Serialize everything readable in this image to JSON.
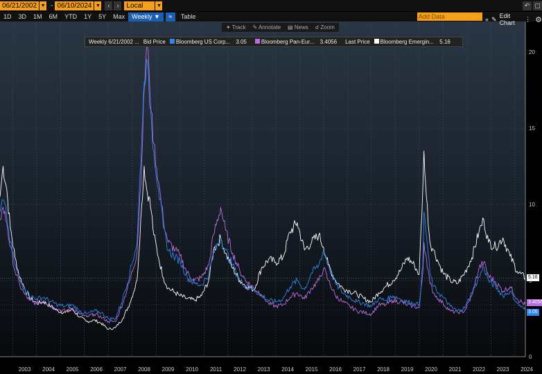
{
  "toolbar": {
    "start_date": "06/21/2002",
    "end_date": "06/10/2024",
    "currency": "Local CCY",
    "periods": [
      "1D",
      "3D",
      "1M",
      "6M",
      "YTD",
      "1Y",
      "5Y",
      "Max"
    ],
    "frequency": "Weekly",
    "table_label": "Table",
    "add_data_placeholder": "Add Data",
    "edit_chart_label": "Edit Chart"
  },
  "tools": [
    "Track",
    "Annotate",
    "News",
    "Zoom"
  ],
  "legend": {
    "header": "Weekly 6/21/2002 ...",
    "bid_label": "Bid Price",
    "last_label": "Last Price"
  },
  "colors": {
    "us_corp": "#2f86e8",
    "pan_euro": "#b86ee0",
    "em": "#ffffff",
    "accent": "#f6a01a",
    "active": "#1b5fb5"
  },
  "chart_data": {
    "type": "line",
    "xlim": [
      2002.47,
      2024.44
    ],
    "ylim": [
      0,
      22
    ],
    "x_ticks": [
      "2003",
      "2004",
      "2005",
      "2006",
      "2007",
      "2008",
      "2009",
      "2010",
      "2011",
      "2012",
      "2013",
      "2014",
      "2015",
      "2016",
      "2017",
      "2018",
      "2019",
      "2020",
      "2021",
      "2022",
      "2023",
      "2024"
    ],
    "y_ticks": [
      0,
      5,
      10,
      15,
      20
    ],
    "x_labels": [
      2003,
      2004,
      2005,
      2006,
      2007,
      2008,
      2009,
      2010,
      2011,
      2012,
      2013,
      2014,
      2015,
      2016,
      2017,
      2018,
      2019,
      2020,
      2021,
      2022,
      2023,
      2024
    ],
    "grid": true,
    "series": [
      {
        "name": "Bloomberg US Corp...",
        "last_value": "3.05",
        "color": "#2f86e8",
        "points": [
          [
            2002.47,
            9.5
          ],
          [
            2002.6,
            10.3
          ],
          [
            2002.75,
            9.2
          ],
          [
            2002.9,
            7.5
          ],
          [
            2003.1,
            6.0
          ],
          [
            2003.3,
            5.0
          ],
          [
            2003.5,
            4.5
          ],
          [
            2003.7,
            4.0
          ],
          [
            2004.0,
            3.8
          ],
          [
            2004.3,
            3.9
          ],
          [
            2004.6,
            3.6
          ],
          [
            2004.9,
            3.4
          ],
          [
            2005.2,
            3.3
          ],
          [
            2005.5,
            3.4
          ],
          [
            2005.8,
            3.0
          ],
          [
            2006.1,
            2.8
          ],
          [
            2006.4,
            3.0
          ],
          [
            2006.7,
            2.9
          ],
          [
            2007.0,
            2.5
          ],
          [
            2007.3,
            2.5
          ],
          [
            2007.6,
            3.8
          ],
          [
            2007.9,
            5.5
          ],
          [
            2008.2,
            7.5
          ],
          [
            2008.4,
            14.5
          ],
          [
            2008.5,
            18.0
          ],
          [
            2008.6,
            19.5
          ],
          [
            2008.7,
            17.5
          ],
          [
            2008.8,
            15.5
          ],
          [
            2008.9,
            13.5
          ],
          [
            2009.1,
            11.0
          ],
          [
            2009.3,
            8.5
          ],
          [
            2009.5,
            7.0
          ],
          [
            2009.8,
            6.5
          ],
          [
            2010.0,
            6.3
          ],
          [
            2010.3,
            5.2
          ],
          [
            2010.6,
            4.8
          ],
          [
            2010.9,
            4.7
          ],
          [
            2011.2,
            5.4
          ],
          [
            2011.4,
            6.8
          ],
          [
            2011.7,
            7.8
          ],
          [
            2011.9,
            7.0
          ],
          [
            2012.2,
            6.0
          ],
          [
            2012.5,
            5.0
          ],
          [
            2012.8,
            4.6
          ],
          [
            2013.1,
            4.4
          ],
          [
            2013.4,
            4.0
          ],
          [
            2013.7,
            3.7
          ],
          [
            2014.0,
            3.6
          ],
          [
            2014.3,
            3.8
          ],
          [
            2014.6,
            4.6
          ],
          [
            2014.9,
            5.0
          ],
          [
            2015.2,
            4.4
          ],
          [
            2015.5,
            5.5
          ],
          [
            2015.8,
            6.0
          ],
          [
            2016.0,
            7.0
          ],
          [
            2016.2,
            6.0
          ],
          [
            2016.5,
            4.8
          ],
          [
            2016.8,
            4.2
          ],
          [
            2017.1,
            3.9
          ],
          [
            2017.4,
            3.6
          ],
          [
            2017.7,
            3.5
          ],
          [
            2018.0,
            3.3
          ],
          [
            2018.3,
            3.8
          ],
          [
            2018.6,
            3.7
          ],
          [
            2018.9,
            4.0
          ],
          [
            2019.2,
            3.8
          ],
          [
            2019.5,
            3.6
          ],
          [
            2019.8,
            3.5
          ],
          [
            2020.0,
            3.4
          ],
          [
            2020.15,
            6.0
          ],
          [
            2020.2,
            9.5
          ],
          [
            2020.3,
            8.0
          ],
          [
            2020.45,
            5.5
          ],
          [
            2020.6,
            4.6
          ],
          [
            2020.8,
            4.2
          ],
          [
            2021.0,
            3.9
          ],
          [
            2021.3,
            3.3
          ],
          [
            2021.6,
            3.0
          ],
          [
            2021.9,
            3.2
          ],
          [
            2022.2,
            4.2
          ],
          [
            2022.5,
            5.2
          ],
          [
            2022.7,
            5.9
          ],
          [
            2022.9,
            5.0
          ],
          [
            2023.2,
            4.6
          ],
          [
            2023.5,
            4.0
          ],
          [
            2023.8,
            4.3
          ],
          [
            2024.1,
            3.5
          ],
          [
            2024.44,
            3.05
          ]
        ]
      },
      {
        "name": "Bloomberg Pan-Eur...",
        "last_value": "3.4056",
        "color": "#b86ee0",
        "points": [
          [
            2002.47,
            9.0
          ],
          [
            2002.6,
            9.8
          ],
          [
            2002.75,
            8.8
          ],
          [
            2002.9,
            7.2
          ],
          [
            2003.1,
            5.6
          ],
          [
            2003.3,
            4.7
          ],
          [
            2003.5,
            4.1
          ],
          [
            2003.7,
            3.7
          ],
          [
            2004.0,
            3.5
          ],
          [
            2004.3,
            3.7
          ],
          [
            2004.6,
            3.3
          ],
          [
            2004.9,
            3.1
          ],
          [
            2005.2,
            3.0
          ],
          [
            2005.5,
            3.2
          ],
          [
            2005.8,
            2.8
          ],
          [
            2006.1,
            2.6
          ],
          [
            2006.4,
            2.8
          ],
          [
            2006.7,
            2.6
          ],
          [
            2007.0,
            2.3
          ],
          [
            2007.3,
            2.3
          ],
          [
            2007.6,
            3.5
          ],
          [
            2007.9,
            5.0
          ],
          [
            2008.2,
            6.8
          ],
          [
            2008.4,
            13.0
          ],
          [
            2008.5,
            17.5
          ],
          [
            2008.6,
            20.5
          ],
          [
            2008.7,
            19.0
          ],
          [
            2008.8,
            16.0
          ],
          [
            2008.9,
            14.0
          ],
          [
            2009.1,
            11.5
          ],
          [
            2009.3,
            9.0
          ],
          [
            2009.5,
            7.5
          ],
          [
            2009.8,
            7.0
          ],
          [
            2010.0,
            6.6
          ],
          [
            2010.3,
            5.5
          ],
          [
            2010.6,
            5.0
          ],
          [
            2010.9,
            5.2
          ],
          [
            2011.2,
            6.0
          ],
          [
            2011.4,
            8.0
          ],
          [
            2011.7,
            9.8
          ],
          [
            2011.9,
            8.3
          ],
          [
            2012.2,
            6.8
          ],
          [
            2012.5,
            5.6
          ],
          [
            2012.8,
            4.9
          ],
          [
            2013.1,
            4.5
          ],
          [
            2013.4,
            4.1
          ],
          [
            2013.7,
            3.5
          ],
          [
            2014.0,
            3.3
          ],
          [
            2014.3,
            3.4
          ],
          [
            2014.6,
            3.9
          ],
          [
            2014.9,
            4.2
          ],
          [
            2015.2,
            3.8
          ],
          [
            2015.5,
            4.5
          ],
          [
            2015.8,
            5.0
          ],
          [
            2016.0,
            5.8
          ],
          [
            2016.2,
            5.0
          ],
          [
            2016.5,
            4.0
          ],
          [
            2016.8,
            3.6
          ],
          [
            2017.1,
            3.3
          ],
          [
            2017.4,
            3.0
          ],
          [
            2017.7,
            2.9
          ],
          [
            2018.0,
            2.8
          ],
          [
            2018.3,
            3.4
          ],
          [
            2018.6,
            3.4
          ],
          [
            2018.9,
            3.7
          ],
          [
            2019.2,
            3.6
          ],
          [
            2019.5,
            3.4
          ],
          [
            2019.8,
            3.3
          ],
          [
            2020.0,
            3.2
          ],
          [
            2020.15,
            5.5
          ],
          [
            2020.2,
            7.5
          ],
          [
            2020.3,
            6.5
          ],
          [
            2020.45,
            4.8
          ],
          [
            2020.6,
            4.2
          ],
          [
            2020.8,
            3.8
          ],
          [
            2021.0,
            3.5
          ],
          [
            2021.3,
            3.0
          ],
          [
            2021.6,
            2.9
          ],
          [
            2021.9,
            3.0
          ],
          [
            2022.2,
            4.0
          ],
          [
            2022.5,
            5.8
          ],
          [
            2022.7,
            6.2
          ],
          [
            2022.9,
            5.3
          ],
          [
            2023.2,
            4.9
          ],
          [
            2023.5,
            4.3
          ],
          [
            2023.8,
            4.6
          ],
          [
            2024.1,
            3.8
          ],
          [
            2024.44,
            3.4056
          ]
        ]
      },
      {
        "name": "Bloomberg Emergin...",
        "last_value": "5.16",
        "color": "#ffffff",
        "points": [
          [
            2002.47,
            10.5
          ],
          [
            2002.6,
            12.5
          ],
          [
            2002.75,
            11.0
          ],
          [
            2002.9,
            8.5
          ],
          [
            2003.1,
            6.5
          ],
          [
            2003.3,
            5.2
          ],
          [
            2003.5,
            4.5
          ],
          [
            2003.7,
            3.9
          ],
          [
            2004.0,
            3.5
          ],
          [
            2004.3,
            3.6
          ],
          [
            2004.6,
            3.3
          ],
          [
            2004.9,
            3.0
          ],
          [
            2005.2,
            2.9
          ],
          [
            2005.5,
            3.1
          ],
          [
            2005.8,
            2.6
          ],
          [
            2006.1,
            2.3
          ],
          [
            2006.4,
            2.4
          ],
          [
            2006.7,
            2.2
          ],
          [
            2007.0,
            1.8
          ],
          [
            2007.3,
            1.9
          ],
          [
            2007.6,
            2.5
          ],
          [
            2007.9,
            3.5
          ],
          [
            2008.2,
            5.0
          ],
          [
            2008.4,
            10.0
          ],
          [
            2008.5,
            12.5
          ],
          [
            2008.6,
            11.0
          ],
          [
            2008.7,
            10.5
          ],
          [
            2008.8,
            9.5
          ],
          [
            2008.9,
            8.0
          ],
          [
            2009.1,
            6.5
          ],
          [
            2009.3,
            5.2
          ],
          [
            2009.5,
            4.5
          ],
          [
            2009.8,
            4.2
          ],
          [
            2010.0,
            4.0
          ],
          [
            2010.3,
            3.8
          ],
          [
            2010.6,
            3.7
          ],
          [
            2010.9,
            4.0
          ],
          [
            2011.2,
            5.0
          ],
          [
            2011.4,
            7.0
          ],
          [
            2011.7,
            7.8
          ],
          [
            2011.9,
            6.8
          ],
          [
            2012.2,
            5.8
          ],
          [
            2012.5,
            5.0
          ],
          [
            2012.8,
            4.6
          ],
          [
            2013.1,
            4.4
          ],
          [
            2013.4,
            5.8
          ],
          [
            2013.7,
            6.4
          ],
          [
            2014.0,
            6.2
          ],
          [
            2014.3,
            6.5
          ],
          [
            2014.6,
            8.2
          ],
          [
            2014.9,
            8.8
          ],
          [
            2015.2,
            7.0
          ],
          [
            2015.5,
            7.5
          ],
          [
            2015.8,
            8.0
          ],
          [
            2016.0,
            7.2
          ],
          [
            2016.2,
            6.0
          ],
          [
            2016.5,
            5.0
          ],
          [
            2016.8,
            4.5
          ],
          [
            2017.1,
            4.3
          ],
          [
            2017.4,
            4.1
          ],
          [
            2017.7,
            3.8
          ],
          [
            2018.0,
            3.6
          ],
          [
            2018.3,
            4.2
          ],
          [
            2018.6,
            4.6
          ],
          [
            2018.9,
            5.0
          ],
          [
            2019.2,
            5.6
          ],
          [
            2019.5,
            6.5
          ],
          [
            2019.8,
            6.0
          ],
          [
            2020.0,
            5.4
          ],
          [
            2020.15,
            11.0
          ],
          [
            2020.2,
            13.5
          ],
          [
            2020.3,
            10.5
          ],
          [
            2020.45,
            7.5
          ],
          [
            2020.6,
            7.0
          ],
          [
            2020.8,
            6.2
          ],
          [
            2021.0,
            5.5
          ],
          [
            2021.3,
            5.0
          ],
          [
            2021.6,
            4.8
          ],
          [
            2021.9,
            5.5
          ],
          [
            2022.2,
            6.5
          ],
          [
            2022.5,
            8.2
          ],
          [
            2022.7,
            9.0
          ],
          [
            2022.9,
            7.5
          ],
          [
            2023.2,
            7.2
          ],
          [
            2023.5,
            7.8
          ],
          [
            2023.8,
            6.6
          ],
          [
            2024.1,
            5.6
          ],
          [
            2024.44,
            5.16
          ]
        ]
      }
    ]
  }
}
